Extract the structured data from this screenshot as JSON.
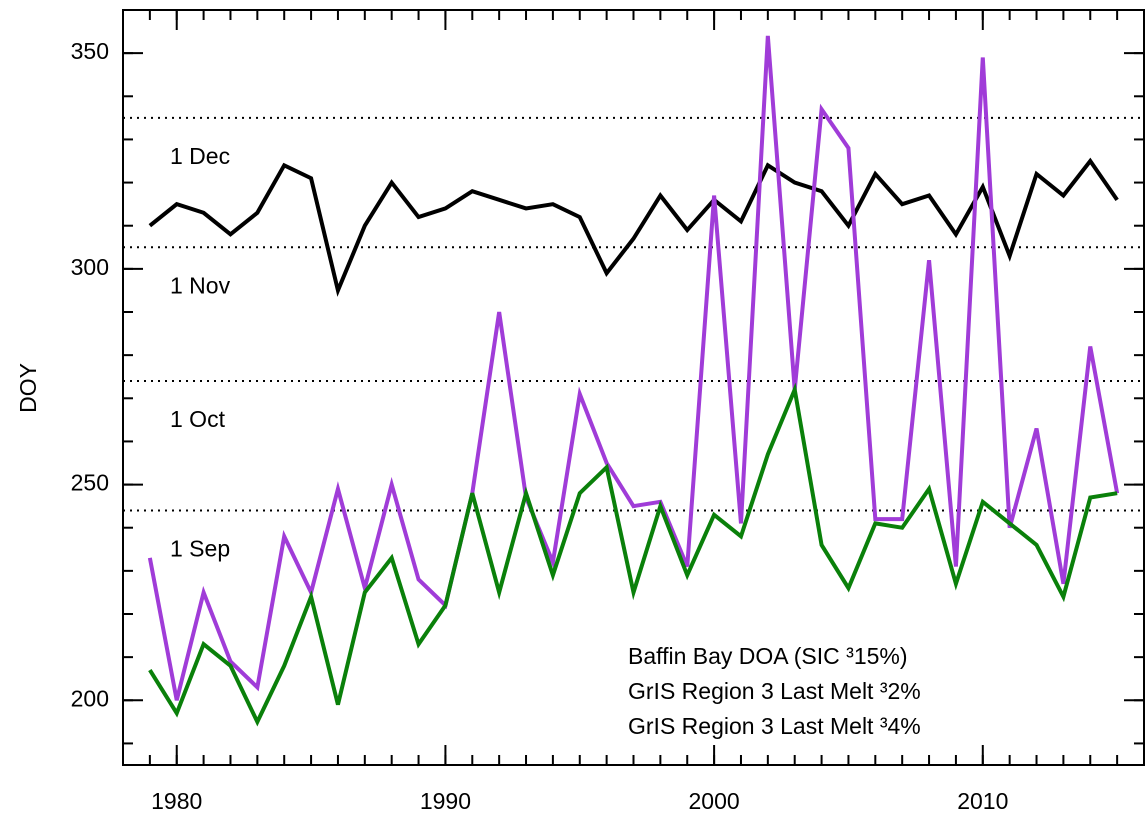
{
  "chart_data": {
    "type": "line",
    "y_label": "DOY",
    "x": [
      1979,
      1980,
      1981,
      1982,
      1983,
      1984,
      1985,
      1986,
      1987,
      1988,
      1989,
      1990,
      1991,
      1992,
      1993,
      1994,
      1995,
      1996,
      1997,
      1998,
      1999,
      2000,
      2001,
      2002,
      2003,
      2004,
      2005,
      2006,
      2007,
      2008,
      2009,
      2010,
      2011,
      2012,
      2013,
      2014,
      2015
    ],
    "series": [
      {
        "name": "Baffin Bay DOA (SIC ³15%)",
        "color": "#000000",
        "values": [
          310,
          315,
          313,
          308,
          313,
          324,
          321,
          295,
          310,
          320,
          312,
          314,
          318,
          316,
          314,
          315,
          312,
          299,
          307,
          317,
          309,
          316,
          311,
          324,
          320,
          318,
          310,
          322,
          315,
          317,
          308,
          319,
          303,
          322,
          317,
          325,
          316
        ]
      },
      {
        "name": "GrIS Region 3 Last Melt ³2%",
        "color": "#a03cd8",
        "values": [
          233,
          200,
          225,
          209,
          203,
          238,
          225,
          249,
          226,
          250,
          228,
          222,
          248,
          290,
          247,
          232,
          271,
          255,
          245,
          246,
          231,
          317,
          241,
          354,
          272,
          337,
          328,
          242,
          242,
          302,
          231,
          349,
          240,
          263,
          227,
          282,
          248
        ]
      },
      {
        "name": "GrIS Region 3 Last Melt ³4%",
        "color": "#0a800a",
        "values": [
          207,
          197,
          213,
          208,
          195,
          208,
          224,
          199,
          225,
          233,
          213,
          222,
          248,
          225,
          248,
          229,
          248,
          254,
          225,
          245,
          229,
          243,
          238,
          257,
          272,
          236,
          226,
          241,
          240,
          249,
          227,
          246,
          241,
          236,
          224,
          247,
          248
        ]
      }
    ],
    "xlim": [
      1978,
      2016
    ],
    "xticks": [
      1980,
      1990,
      2000,
      2010
    ],
    "xticks_minor": [
      1979,
      1980,
      1981,
      1982,
      1983,
      1984,
      1985,
      1986,
      1987,
      1988,
      1989,
      1990,
      1991,
      1992,
      1993,
      1994,
      1995,
      1996,
      1997,
      1998,
      1999,
      2000,
      2001,
      2002,
      2003,
      2004,
      2005,
      2006,
      2007,
      2008,
      2009,
      2010,
      2011,
      2012,
      2013,
      2014,
      2015
    ],
    "ylim": [
      185,
      360
    ],
    "yticks": [
      200,
      250,
      300,
      350
    ],
    "yticks_minor": [
      190,
      200,
      210,
      220,
      230,
      240,
      250,
      260,
      270,
      280,
      290,
      300,
      310,
      320,
      330,
      340,
      350
    ],
    "annotations": [
      {
        "label": "1 Sep",
        "y": 244
      },
      {
        "label": "1 Oct",
        "y": 274
      },
      {
        "label": "1 Nov",
        "y": 305
      },
      {
        "label": "1 Dec",
        "y": 335
      }
    ]
  }
}
